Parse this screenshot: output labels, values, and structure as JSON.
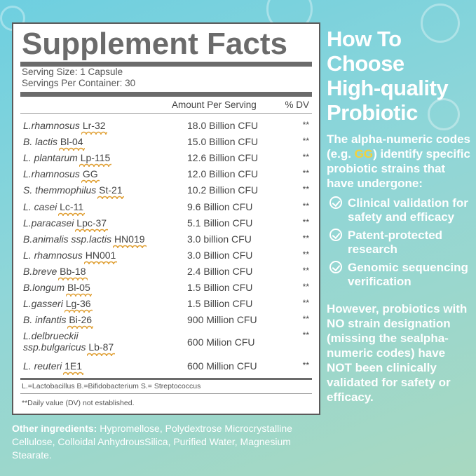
{
  "panel": {
    "title": "Supplement Facts",
    "serving_size": "Serving Size: 1 Capsule",
    "servings_per_container": "Servings Per Container: 30",
    "col_amount": "Amount Per Serving",
    "col_dv": "% DV",
    "rows": [
      {
        "species": "L.rhamnosus",
        "strain": "Lr-32",
        "amount": "18.0 Billion CFU",
        "dv": "**"
      },
      {
        "species": "B. lactis",
        "strain": "Bl-04",
        "amount": "15.0 Billion CFU",
        "dv": "**"
      },
      {
        "species": "L. plantarum",
        "strain": "Lp-115",
        "amount": "12.6 Billion CFU",
        "dv": "**"
      },
      {
        "species": "L.rhamnosus",
        "strain": "GG",
        "amount": "12.0 Billion CFU",
        "dv": "**"
      },
      {
        "species": "S. themmophilus",
        "strain": "St-21",
        "amount": "10.2 Billion CFU",
        "dv": "**"
      },
      {
        "species": "L. casei",
        "strain": "Lc-11",
        "amount": "9.6 Billion CFU",
        "dv": "**"
      },
      {
        "species": "L.paracasei",
        "strain": "Lpc-37",
        "amount": "5.1 Billion CFU",
        "dv": "**"
      },
      {
        "species": "B.animalis ssp.lactis",
        "strain": "HN019",
        "amount": "3.0 billion CFU",
        "dv": "**"
      },
      {
        "species": "L. rhamnosus",
        "strain": "HN001",
        "amount": "3.0 Billion CFU",
        "dv": "**"
      },
      {
        "species": "B.breve",
        "strain": "Bb-18",
        "amount": "2.4 Billion CFU",
        "dv": "**"
      },
      {
        "species": "B.longum",
        "strain": "Bl-05",
        "amount": "1.5 Billion CFU",
        "dv": "**"
      },
      {
        "species": "L.gasseri",
        "strain": "Lg-36",
        "amount": "1.5 Billion CFU",
        "dv": "**"
      },
      {
        "species": "B. infantis",
        "strain": "Bi-26",
        "amount": "900 Million CFU",
        "dv": "**"
      }
    ],
    "row_delbrueckii": {
      "species_line1": "L.delbrueckii",
      "species_line2": "ssp.bulgaricus",
      "strain": "Lb-87",
      "amount": "600 Milion CFU",
      "dv": "**"
    },
    "row_reuteri": {
      "species": "L. reuteri",
      "strain": "1E1",
      "amount": "600 Million CFU",
      "dv": "**"
    },
    "abbreviations": "L.=Lactobacillus B.=Bifidobacterium S.= Streptococcus",
    "dv_note": "**Daily value (DV) not established."
  },
  "right": {
    "title_lines": [
      "How To",
      "Choose",
      "High-quality",
      "Probiotic"
    ],
    "intro_pre": "The alpha-numeric codes (e.g. ",
    "intro_highlight": "GG",
    "intro_post": ") identify specific probiotic strains that have undergone:",
    "checks": [
      "Clinical validation for safety and efficacy",
      "Patent-protected research",
      "Genomic sequencing verification"
    ],
    "closing": "However, probiotics with NO strain designation (missing the sealpha-numeric codes) have NOT been clinically validated for safety or efficacy."
  },
  "other": {
    "label": "Other ingredients:",
    "text": " Hypromellose, Polydextrose Microcrystalline Cellulose, Colloidal AnhydrousSilica, Purified Water, Magnesium Stearate."
  },
  "colors": {
    "accent_highlight": "#f4d23a",
    "squiggle": "#e0a035",
    "title_gray": "#6b6b6b"
  }
}
